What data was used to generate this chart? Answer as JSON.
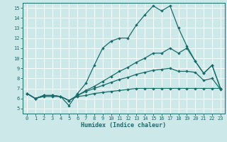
{
  "xlabel": "Humidex (Indice chaleur)",
  "xlim": [
    -0.5,
    23.5
  ],
  "ylim": [
    4.5,
    15.5
  ],
  "xticks": [
    0,
    1,
    2,
    3,
    4,
    5,
    6,
    7,
    8,
    9,
    10,
    11,
    12,
    13,
    14,
    15,
    16,
    17,
    18,
    19,
    20,
    21,
    22,
    23
  ],
  "yticks": [
    5,
    6,
    7,
    8,
    9,
    10,
    11,
    12,
    13,
    14,
    15
  ],
  "bg_color": "#cce8e8",
  "line_color": "#1a6b6b",
  "grid_color": "#ffffff",
  "lines": [
    {
      "x": [
        0,
        1,
        2,
        3,
        4,
        5,
        6,
        7,
        8,
        9,
        10,
        11,
        12,
        13,
        14,
        15,
        16,
        17,
        18,
        19,
        20,
        21,
        22,
        23
      ],
      "y": [
        6.5,
        6.0,
        6.3,
        6.3,
        6.2,
        5.3,
        6.5,
        7.5,
        9.3,
        11.0,
        11.7,
        12.0,
        12.0,
        13.3,
        14.3,
        15.2,
        14.7,
        15.2,
        13.0,
        11.2,
        9.7,
        8.5,
        9.3,
        7.0
      ]
    },
    {
      "x": [
        0,
        1,
        2,
        3,
        4,
        5,
        6,
        7,
        8,
        9,
        10,
        11,
        12,
        13,
        14,
        15,
        16,
        17,
        18,
        19,
        20,
        21,
        22,
        23
      ],
      "y": [
        6.5,
        6.0,
        6.3,
        6.3,
        6.2,
        5.8,
        6.3,
        6.8,
        7.2,
        7.7,
        8.2,
        8.7,
        9.1,
        9.6,
        10.0,
        10.5,
        10.5,
        11.0,
        10.5,
        11.0,
        9.7,
        8.5,
        9.3,
        7.0
      ]
    },
    {
      "x": [
        0,
        1,
        2,
        3,
        4,
        5,
        6,
        7,
        8,
        9,
        10,
        11,
        12,
        13,
        14,
        15,
        16,
        17,
        18,
        19,
        20,
        21,
        22,
        23
      ],
      "y": [
        6.5,
        6.0,
        6.3,
        6.3,
        6.2,
        5.8,
        6.3,
        6.7,
        7.0,
        7.3,
        7.6,
        7.9,
        8.1,
        8.4,
        8.6,
        8.8,
        8.9,
        9.0,
        8.7,
        8.7,
        8.6,
        7.8,
        8.0,
        6.9
      ]
    },
    {
      "x": [
        0,
        1,
        2,
        3,
        4,
        5,
        6,
        7,
        8,
        9,
        10,
        11,
        12,
        13,
        14,
        15,
        16,
        17,
        18,
        19,
        20,
        21,
        22,
        23
      ],
      "y": [
        6.5,
        6.0,
        6.2,
        6.2,
        6.2,
        5.8,
        6.2,
        6.3,
        6.5,
        6.6,
        6.7,
        6.8,
        6.9,
        7.0,
        7.0,
        7.0,
        7.0,
        7.0,
        7.0,
        7.0,
        7.0,
        7.0,
        7.0,
        7.0
      ]
    }
  ]
}
